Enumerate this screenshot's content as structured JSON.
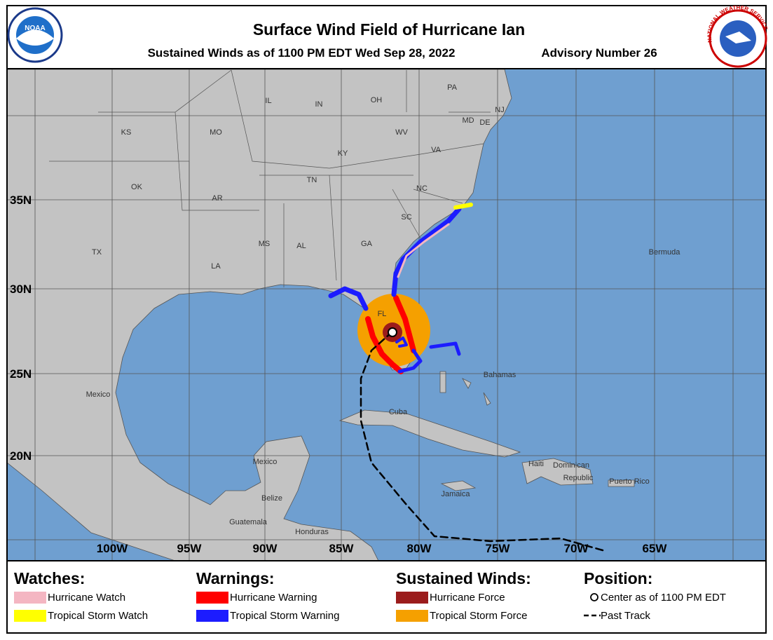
{
  "header": {
    "title": "Surface Wind Field of Hurricane Ian",
    "subtitle": "Sustained Winds as of 1100 PM EDT Wed Sep 28, 2022",
    "advisory": "Advisory Number 26",
    "left_logo": "NOAA",
    "right_logo": "NATIONAL WEATHER SERVICE"
  },
  "map": {
    "latitude_labels": [
      "35N",
      "30N",
      "25N",
      "20N"
    ],
    "longitude_labels": [
      "100W",
      "95W",
      "90W",
      "85W",
      "80W",
      "75W",
      "70W",
      "65W"
    ],
    "place_labels": [
      "KS",
      "MO",
      "IL",
      "IN",
      "OH",
      "PA",
      "NJ",
      "MD",
      "DE",
      "WV",
      "VA",
      "KY",
      "TN",
      "NC",
      "OK",
      "AR",
      "SC",
      "MS",
      "AL",
      "GA",
      "TX",
      "LA",
      "FL",
      "Bermuda",
      "Bahamas",
      "Mexico",
      "Cuba",
      "Mexico",
      "Belize",
      "Guatemala",
      "Honduras",
      "Jamaica",
      "Haiti",
      "Dominican",
      "Republic",
      "Puerto Rico"
    ]
  },
  "legend": {
    "watches": {
      "title": "Watches:",
      "items": [
        "Hurricane Watch",
        "Tropical Storm Watch"
      ]
    },
    "warnings": {
      "title": "Warnings:",
      "items": [
        "Hurricane Warning",
        "Tropical Storm Warning"
      ]
    },
    "winds": {
      "title": "Sustained Winds:",
      "items": [
        "Hurricane Force",
        "Tropical Storm Force"
      ]
    },
    "position": {
      "title": "Position:",
      "items": [
        "Center as of 1100 PM EDT",
        "Past Track"
      ]
    }
  }
}
